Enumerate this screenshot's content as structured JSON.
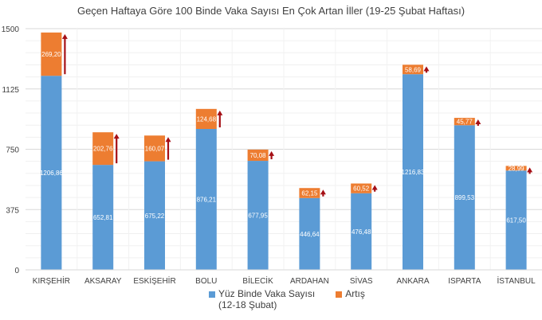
{
  "chart_data": {
    "type": "bar",
    "stacked": true,
    "title": "Geçen Haftaya Göre 100 Binde Vaka Sayısı En Çok Artan İller (19-25 Şubat Haftası)",
    "categories": [
      "KIRŞEHİR",
      "AKSARAY",
      "ESKİŞEHİR",
      "BOLU",
      "BİLECİK",
      "ARDAHAN",
      "SİVAS",
      "ANKARA",
      "ISPARTA",
      "İSTANBUL"
    ],
    "series": [
      {
        "name": "Yüz Binde Vaka Sayısı (12-18 Şubat)",
        "color": "#5b9bd5",
        "values": [
          1206.86,
          652.81,
          675.22,
          876.21,
          677.95,
          446.64,
          476.48,
          1216.83,
          899.53,
          617.5
        ],
        "labels": [
          "1206,86",
          "652,81",
          "675,22",
          "876,21",
          "677,95",
          "446,64",
          "476,48",
          "1216,83",
          "899,53",
          "617,50"
        ]
      },
      {
        "name": "Artış",
        "color": "#ed7d31",
        "values": [
          269.2,
          202.76,
          160.07,
          124.68,
          70.08,
          62.15,
          60.52,
          58.69,
          45.77,
          28.99
        ],
        "labels": [
          "269,20",
          "202,76",
          "160,07",
          "124,68",
          "70,08",
          "62,15",
          "60,52",
          "58,69",
          "45,77",
          "28,99"
        ]
      }
    ],
    "legend": {
      "label1": "Yüz Binde Vaka Sayısı",
      "label1b": "(12-18 Şubat)",
      "label2": "Artış",
      "position": "bottom"
    },
    "ylim": [
      0,
      1500
    ],
    "yticks": [
      0,
      375,
      750,
      1125,
      1500
    ],
    "grid": true,
    "arrow_color": "#a50f15"
  }
}
